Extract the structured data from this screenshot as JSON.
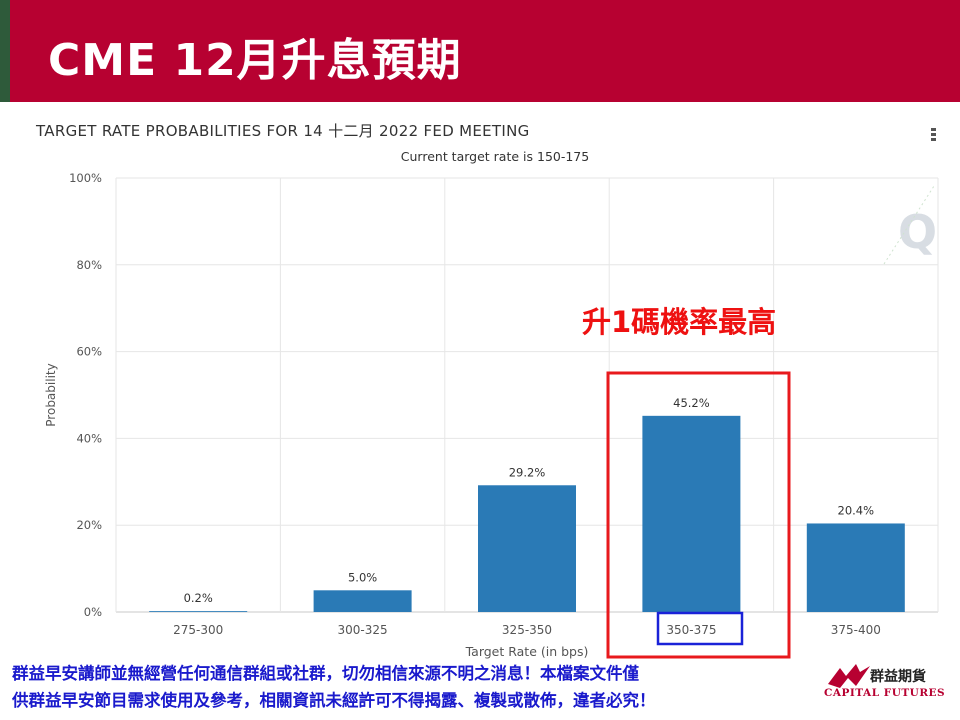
{
  "slide": {
    "title": "CME 12月升息預期"
  },
  "chart_header": {
    "title": "TARGET RATE PROBABILITIES FOR 14 十二月 2022 FED MEETING",
    "subtitle": "Current target rate is 150-175"
  },
  "chart_data": {
    "type": "bar",
    "categories": [
      "275-300",
      "300-325",
      "325-350",
      "350-375",
      "375-400"
    ],
    "values": [
      0.2,
      5.0,
      29.2,
      45.2,
      20.4
    ],
    "value_labels": [
      "0.2%",
      "5.0%",
      "29.2%",
      "45.2%",
      "20.4%"
    ],
    "title": "TARGET RATE PROBABILITIES FOR 14 十二月 2022 FED MEETING",
    "subtitle": "Current target rate is 150-175",
    "xlabel": "Target Rate (in bps)",
    "ylabel": "Probability",
    "ylim": [
      0,
      100
    ],
    "y_ticks": [
      "0%",
      "20%",
      "40%",
      "60%",
      "80%",
      "100%"
    ],
    "y_tick_values": [
      0,
      20,
      40,
      60,
      80,
      100
    ],
    "grid": true,
    "bar_color": "#2a7ab6",
    "highlighted_category": "350-375"
  },
  "annotation": {
    "text": "升1碼機率最高",
    "color": "#ee1111"
  },
  "footer": {
    "disclaimer_line1": "群益早安講師並無經營任何通信群組或社群，切勿相信來源不明之消息！本檔案文件僅",
    "disclaimer_line2": "供群益早安節目需求使用及參考，相關資訊未經許可不得揭露、複製或散佈，違者必究！",
    "logo_name": "群益期貨",
    "logo_english": "CAPITAL FUTURES"
  },
  "colors": {
    "title_bar": "#b70131",
    "bar": "#2a7ab6",
    "highlight_box_red": "#e8191d",
    "highlight_box_blue": "#1a22d8",
    "disclaimer_text": "#1a1acc"
  },
  "icons": {
    "menu": "hamburger-menu-icon",
    "watermark": "q-watermark-icon",
    "logo": "capital-futures-logo-icon"
  }
}
